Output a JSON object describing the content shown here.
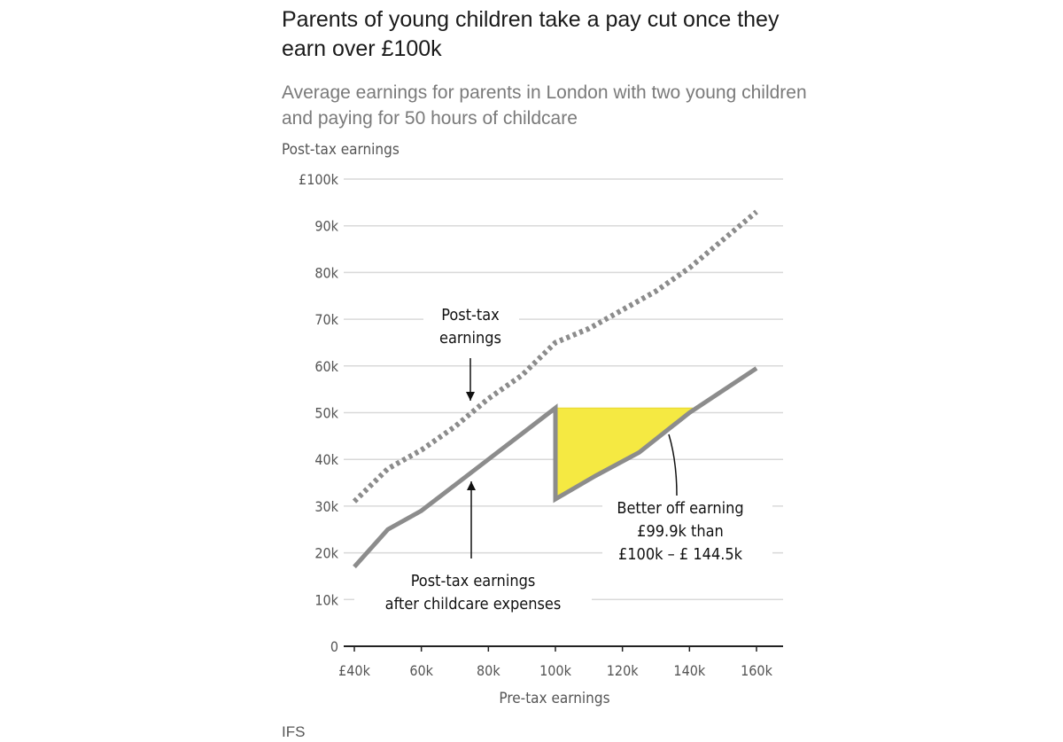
{
  "header": {
    "title": "Parents of young children take a pay cut once they earn over £100k",
    "subtitle": "Average earnings for parents in London with two young children and paying for 50 hours of childcare"
  },
  "source": "IFS",
  "colors": {
    "gridline": "#d9d9d9",
    "series_line": "#8c8c8c",
    "dotted_line": "#8c8c8c",
    "highlight_fill": "#f5e942",
    "axis": "#222222",
    "annotation_text": "#111111"
  },
  "chart_data": {
    "type": "line",
    "title": "Parents of young children take a pay cut once they earn over £100k",
    "subtitle": "Average earnings for parents in London with two young children and paying for 50 hours of childcare",
    "xlabel": "Pre-tax earnings",
    "ylabel": "Post-tax earnings",
    "xlim": [
      40000,
      160000
    ],
    "ylim": [
      0,
      100000
    ],
    "x_ticks": [
      40000,
      60000,
      80000,
      100000,
      120000,
      140000,
      160000
    ],
    "x_tick_labels": [
      "£40k",
      "60k",
      "80k",
      "100k",
      "120k",
      "140k",
      "160k"
    ],
    "y_ticks": [
      0,
      10000,
      20000,
      30000,
      40000,
      50000,
      60000,
      70000,
      80000,
      90000,
      100000
    ],
    "y_tick_labels": [
      "0",
      "10k",
      "20k",
      "30k",
      "40k",
      "50k",
      "60k",
      "70k",
      "80k",
      "90k",
      "£100k"
    ],
    "grid": true,
    "series": [
      {
        "name": "Post-tax earnings",
        "style": "dotted",
        "color": "#8c8c8c",
        "points": [
          [
            40000,
            31000
          ],
          [
            50000,
            38000
          ],
          [
            60000,
            42000
          ],
          [
            70000,
            47000
          ],
          [
            80000,
            53000
          ],
          [
            90000,
            58000
          ],
          [
            100000,
            65000
          ],
          [
            110000,
            68000
          ],
          [
            120000,
            72000
          ],
          [
            130000,
            76000
          ],
          [
            140000,
            81000
          ],
          [
            150000,
            87000
          ],
          [
            160000,
            93000
          ]
        ]
      },
      {
        "name": "Post-tax earnings after childcare expenses",
        "style": "solid",
        "color": "#8c8c8c",
        "points": [
          [
            40000,
            17000
          ],
          [
            50000,
            25000
          ],
          [
            60000,
            29000
          ],
          [
            70000,
            34500
          ],
          [
            80000,
            40000
          ],
          [
            90000,
            45500
          ],
          [
            100000,
            51000
          ],
          [
            100000,
            31500
          ],
          [
            112000,
            36500
          ],
          [
            125000,
            41500
          ],
          [
            140000,
            50000
          ],
          [
            160000,
            59500
          ]
        ]
      }
    ],
    "shaded_region": {
      "description": "Better off earning £99.9k than £100k – £144.5k",
      "color": "#f5e942",
      "points": [
        [
          100000,
          51000
        ],
        [
          100000,
          31500
        ],
        [
          112000,
          36500
        ],
        [
          125000,
          41500
        ],
        [
          141000,
          51000
        ]
      ]
    },
    "annotations": [
      {
        "lines": [
          "Post-tax",
          "earnings"
        ]
      },
      {
        "lines": [
          "Post-tax earnings",
          "after childcare expenses"
        ]
      },
      {
        "lines": [
          "Better off earning",
          "£99.9k than",
          "£100k – £ 144.5k"
        ]
      }
    ]
  }
}
